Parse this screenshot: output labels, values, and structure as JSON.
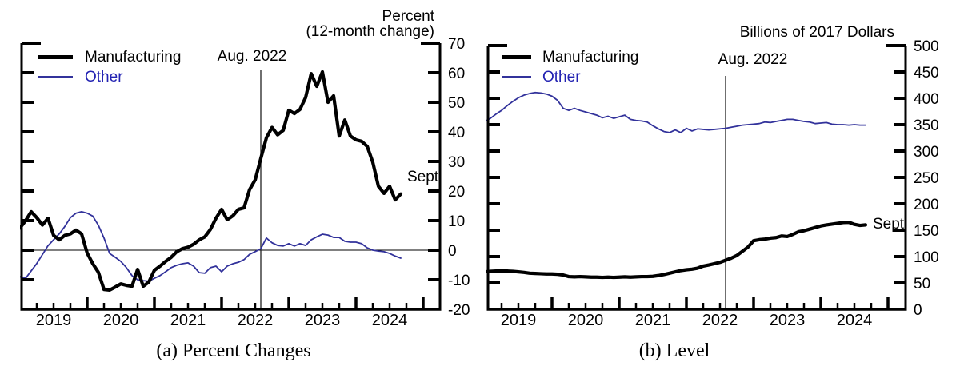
{
  "panels": {
    "a": {
      "title_line1": "Percent",
      "title_line2": "(12-month change)",
      "vline_label": "Aug. 2022",
      "end_label": "Sept",
      "caption": "(a) Percent Changes",
      "legend": {
        "manufacturing": "Manufacturing",
        "other": "Other"
      }
    },
    "b": {
      "title": "Billions of 2017 Dollars",
      "vline_label": "Aug. 2022",
      "end_label": "Sept",
      "caption": "(b) Level",
      "legend": {
        "manufacturing": "Manufacturing",
        "other": "Other"
      }
    }
  },
  "colors": {
    "manufacturing_line": "#000000",
    "other_line": "#32329b",
    "other_text": "#2222b2",
    "vline": "#222222",
    "axis": "#000000"
  },
  "chart_data": [
    {
      "type": "line",
      "panel": "a",
      "title": "Percent (12-month change)",
      "caption": "(a) Percent Changes",
      "x_start": "2019-01",
      "x_end": "2024-09",
      "x_frequency": "monthly",
      "x_tick_labels": [
        "2019",
        "2020",
        "2021",
        "2022",
        "2023",
        "2024"
      ],
      "ylim": [
        -20,
        70
      ],
      "y_tick_labels": [
        70,
        60,
        50,
        40,
        30,
        20,
        10,
        0,
        -10,
        -20
      ],
      "reference_value": 0,
      "grid": false,
      "legend_position": "top-left",
      "vline": {
        "label": "Aug. 2022",
        "x": "2022-08"
      },
      "end_label": "Sept",
      "series": [
        {
          "name": "Manufacturing",
          "values": [
            7.5,
            10,
            13,
            11,
            8.5,
            10.8,
            5,
            3.5,
            5,
            5.5,
            6.8,
            5.5,
            -1,
            -4.6,
            -7.5,
            -13.3,
            -13.5,
            -12.5,
            -11.4,
            -11.9,
            -12.2,
            -6.5,
            -12.2,
            -10.8,
            -6.8,
            -5.4,
            -3.8,
            -2.4,
            -0.5,
            0.5,
            1,
            2,
            3.5,
            4.5,
            7,
            10.8,
            13.8,
            10.3,
            11.6,
            13.8,
            14.3,
            20.5,
            23.8,
            31,
            38,
            41.5,
            39,
            40.5,
            47.3,
            46.2,
            47.6,
            51.6,
            59.7,
            55.4,
            60.3,
            50,
            52.2,
            38.6,
            44,
            38.6,
            37.3,
            36.8,
            35.1,
            29.7,
            21.6,
            19.2,
            21.6,
            17,
            19
          ]
        },
        {
          "name": "Other",
          "values": [
            -9,
            -9.5,
            -7,
            -4.5,
            -1.5,
            1.5,
            3.5,
            5.5,
            8,
            11,
            12.5,
            13,
            12.5,
            11.5,
            8.4,
            4.1,
            -1.1,
            -2.4,
            -3.8,
            -5.9,
            -8.6,
            -10,
            -10.3,
            -10.5,
            -9.5,
            -8.6,
            -7.3,
            -5.9,
            -5.1,
            -4.6,
            -4.3,
            -5.4,
            -7.6,
            -7.8,
            -5.9,
            -5.4,
            -7.3,
            -5.4,
            -4.6,
            -4.1,
            -3.2,
            -1.4,
            -0.5,
            0.5,
            4.1,
            2.5,
            1.6,
            1.4,
            2.2,
            1.4,
            2.2,
            1.6,
            3.5,
            4.5,
            5.4,
            5.1,
            4.3,
            4.3,
            3,
            2.7,
            2.7,
            2.2,
            0.8,
            0,
            -0.3,
            -0.5,
            -1.1,
            -2,
            -2.7
          ]
        }
      ]
    },
    {
      "type": "line",
      "panel": "b",
      "title": "Billions of 2017 Dollars",
      "caption": "(b) Level",
      "x_start": "2019-01",
      "x_end": "2024-09",
      "x_frequency": "monthly",
      "x_tick_labels": [
        "2019",
        "2020",
        "2021",
        "2022",
        "2023",
        "2024"
      ],
      "ylim": [
        0,
        500
      ],
      "y_tick_labels": [
        500,
        450,
        400,
        350,
        300,
        250,
        200,
        150,
        100,
        50,
        0
      ],
      "reference_value": null,
      "grid": false,
      "legend_position": "top-left",
      "vline": {
        "label": "Aug. 2022",
        "x": "2022-08"
      },
      "end_label": "Sept",
      "series": [
        {
          "name": "Manufacturing",
          "values": [
            71,
            72,
            72.5,
            73,
            72.5,
            72,
            71,
            70,
            68.5,
            68,
            67.5,
            67,
            67,
            66.5,
            65,
            62,
            61.5,
            62,
            61.5,
            61,
            61,
            60.5,
            61,
            60.5,
            61,
            61.5,
            61,
            61.5,
            62,
            62,
            62.5,
            64,
            66,
            68.5,
            71,
            73.5,
            75,
            76,
            78,
            82,
            84,
            86.5,
            89,
            93,
            97,
            102,
            110,
            118,
            130,
            132,
            133,
            135,
            136,
            139,
            138,
            142,
            147,
            149,
            152,
            155,
            158,
            160,
            161.5,
            163,
            164.5,
            165,
            161,
            159,
            160
          ]
        },
        {
          "name": "Other",
          "values": [
            356,
            362,
            370,
            377,
            386,
            394,
            401,
            406,
            409,
            411,
            410,
            408,
            404,
            396,
            381,
            377,
            381,
            377,
            374,
            371,
            368,
            363,
            366,
            362,
            365,
            368,
            360,
            358,
            357,
            355,
            348,
            342,
            337,
            335,
            340,
            335,
            343,
            338,
            342,
            341,
            340,
            341,
            342,
            343,
            345,
            347,
            349,
            350,
            351,
            352,
            355,
            354,
            356,
            358,
            360,
            360,
            358,
            356,
            355,
            352,
            353,
            354,
            351,
            350,
            350,
            349,
            350,
            349,
            349
          ]
        }
      ]
    }
  ]
}
